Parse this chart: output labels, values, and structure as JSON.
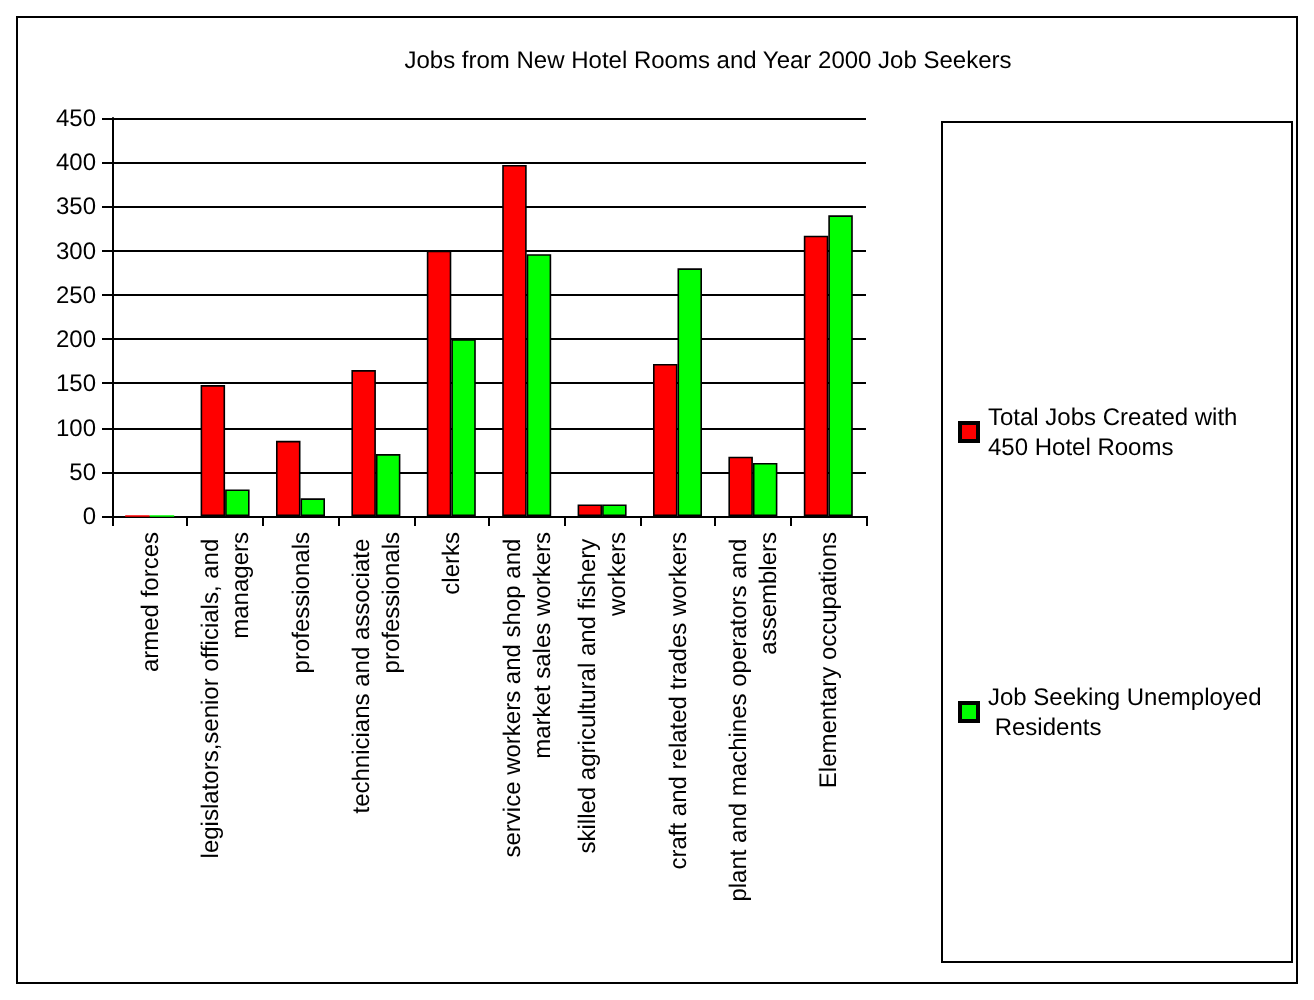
{
  "chart_data": {
    "type": "bar",
    "title": "Jobs from New Hotel Rooms and Year 2000 Job Seekers",
    "categories": [
      "armed forces",
      "legislators,senior officials, and managers",
      "professionals",
      "technicians and associate professionals",
      "clerks",
      "service workers and shop and market sales workers",
      "skilled agricultural and fishery workers",
      "craft and related trades workers",
      "plant and machines operators and assemblers",
      "Elementary occupations"
    ],
    "series": [
      {
        "name": "Total Jobs Created with 450 Hotel Rooms",
        "color": "#ff0000",
        "values": [
          0,
          148,
          85,
          165,
          300,
          397,
          13,
          172,
          67,
          317
        ]
      },
      {
        "name": "Job Seeking Unemployed Residents",
        "color": "#00ff00",
        "values": [
          0,
          30,
          20,
          70,
          200,
          296,
          13,
          280,
          60,
          340
        ]
      }
    ],
    "ylim": [
      0,
      450
    ],
    "yticks": [
      0,
      50,
      100,
      150,
      200,
      250,
      300,
      350,
      400,
      450
    ],
    "grid": "y",
    "legend": "right"
  }
}
